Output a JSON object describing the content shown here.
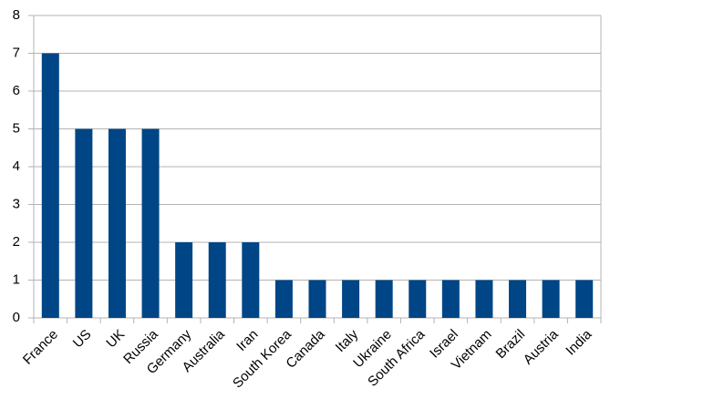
{
  "chart_data": {
    "type": "bar",
    "categories": [
      "France",
      "US",
      "UK",
      "Russia",
      "Germany",
      "Australia",
      "Iran",
      "South Korea",
      "Canada",
      "Italy",
      "Ukraine",
      "South Africa",
      "Israel",
      "Vietnam",
      "Brazil",
      "Austria",
      "India"
    ],
    "values": [
      7,
      5,
      5,
      5,
      2,
      2,
      2,
      1,
      1,
      1,
      1,
      1,
      1,
      1,
      1,
      1,
      1
    ],
    "color": "#004586",
    "ylim": [
      0,
      8
    ],
    "yticks": [
      0,
      1,
      2,
      3,
      4,
      5,
      6,
      7,
      8
    ],
    "grid": true
  }
}
